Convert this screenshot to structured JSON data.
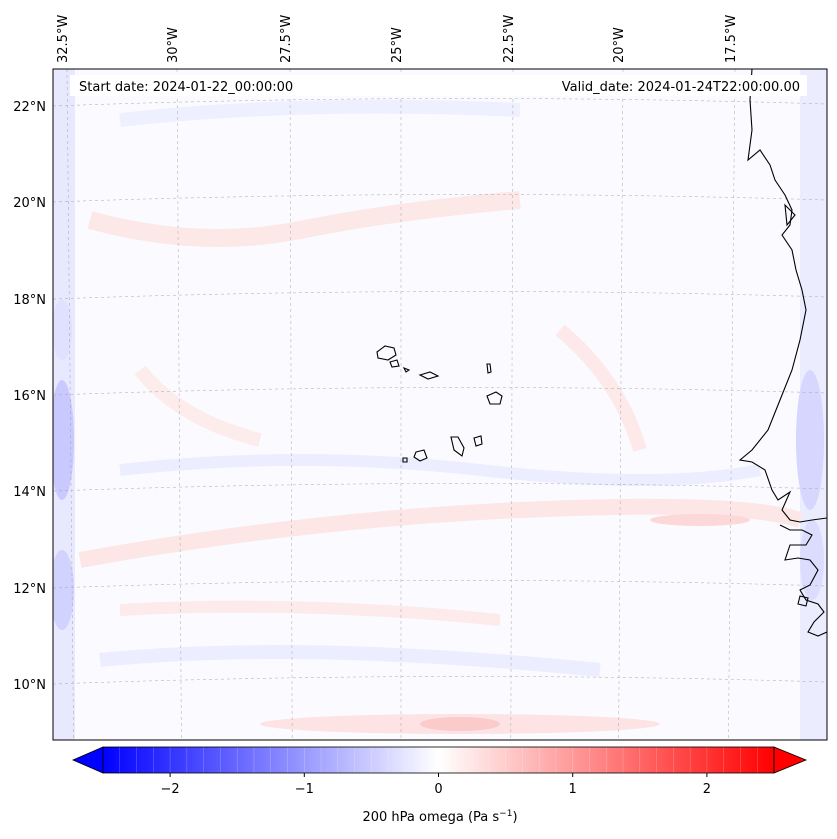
{
  "map": {
    "start_date": "Start date: 2024-01-22_00:00:00",
    "valid_date": "Valid_date: 2024-01-24T22:00:00.00",
    "lon_labels": [
      "32.5°W",
      "30°W",
      "27.5°W",
      "25°W",
      "22.5°W",
      "20°W",
      "17.5°W"
    ],
    "lat_labels": [
      "22°N",
      "20°N",
      "18°N",
      "16°N",
      "14°N",
      "12°N",
      "10°N"
    ],
    "field": "200 hPa omega",
    "colors": {
      "negative": "#0000ff",
      "neutral": "#ffffff",
      "positive": "#ff0000",
      "coast": "#000000",
      "grid": "#9a9a9a"
    }
  },
  "colorbar": {
    "label_main": "200 hPa omega (Pa s",
    "label_exp": "−1",
    "label_close": ")",
    "ticks": [
      "−2",
      "−1",
      "0",
      "1",
      "2"
    ],
    "tick_values": [
      -2,
      -1,
      0,
      1,
      2
    ],
    "range": [
      -2.5,
      2.5
    ]
  }
}
